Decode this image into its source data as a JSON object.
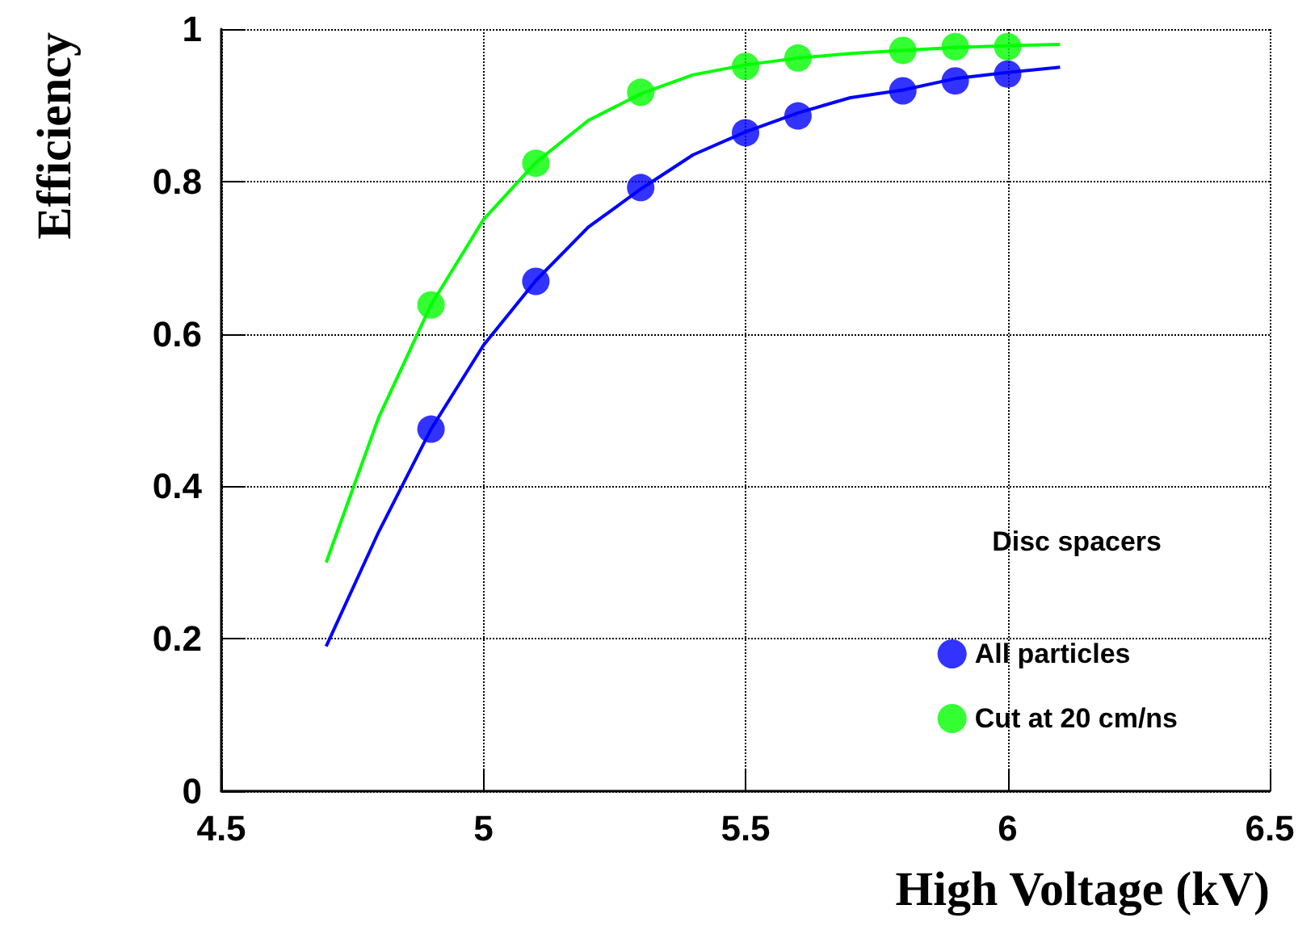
{
  "chart_data": {
    "type": "scatter",
    "xlabel": "High Voltage (kV)",
    "ylabel": "Efficiency",
    "legend_title": "Disc spacers",
    "legend": "bottom right",
    "grid": true,
    "marker": "circle",
    "line_style": "solid",
    "xlim": [
      4.5,
      6.5
    ],
    "xticks": [
      4.5,
      5,
      5.5,
      6,
      6.5
    ],
    "ylim": [
      0,
      1
    ],
    "yticks": [
      0,
      0.2,
      0.4,
      0.6,
      0.8,
      1
    ],
    "series": [
      {
        "name": "All particles",
        "color": "#0000ff",
        "x": [
          4.9,
          5.1,
          5.3,
          5.5,
          5.6,
          5.8,
          5.9,
          6.0
        ],
        "values": [
          0.475,
          0.669,
          0.792,
          0.864,
          0.886,
          0.919,
          0.932,
          0.941
        ]
      },
      {
        "name": "Cut at 20 cm/ns",
        "color": "#00ff00",
        "x": [
          4.9,
          5.1,
          5.3,
          5.5,
          5.6,
          5.8,
          5.9,
          6.0
        ],
        "values": [
          0.638,
          0.824,
          0.917,
          0.951,
          0.962,
          0.972,
          0.977,
          0.977
        ]
      },
      {
        "type": "line",
        "marker": "none",
        "color": "#0000ff",
        "x": [
          4.7,
          4.8,
          4.9,
          5.0,
          5.1,
          5.2,
          5.3,
          5.4,
          5.5,
          5.6,
          5.7,
          5.8,
          5.9,
          6.0,
          6.1
        ],
        "values": [
          0.19,
          0.34,
          0.475,
          0.585,
          0.67,
          0.74,
          0.79,
          0.835,
          0.865,
          0.89,
          0.91,
          0.92,
          0.935,
          0.943,
          0.95
        ]
      },
      {
        "type": "line",
        "marker": "none",
        "color": "#00ff00",
        "x": [
          4.7,
          4.8,
          4.9,
          5.0,
          5.1,
          5.2,
          5.3,
          5.4,
          5.5,
          5.6,
          5.7,
          5.8,
          5.9,
          6.0,
          6.1
        ],
        "values": [
          0.3,
          0.49,
          0.638,
          0.75,
          0.825,
          0.88,
          0.915,
          0.94,
          0.953,
          0.962,
          0.968,
          0.972,
          0.976,
          0.978,
          0.98
        ]
      }
    ]
  }
}
